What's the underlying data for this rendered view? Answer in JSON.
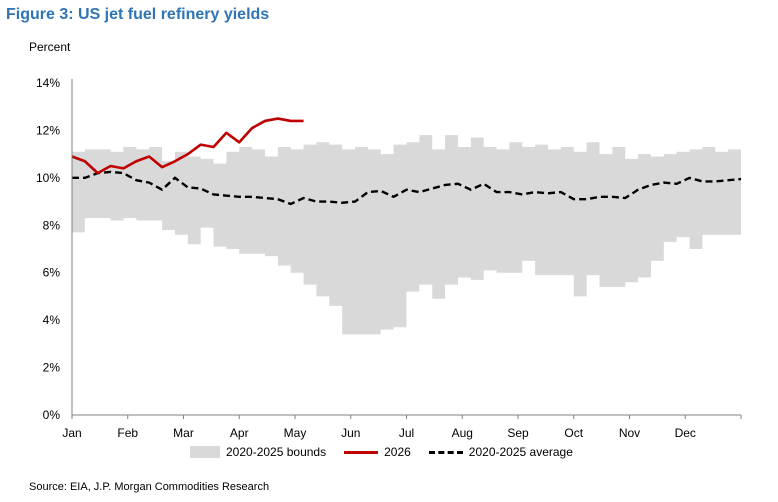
{
  "title": "Figure 3: US jet fuel refinery yields",
  "y_unit": "Percent",
  "source": "Source: EIA, J.P. Morgan Commodities Research",
  "colors": {
    "title": "#2f75b5",
    "band": "#d9d9d9",
    "series_2026": "#c00000",
    "average": "#000000"
  },
  "chart_data": {
    "type": "line",
    "title": "Figure 3: US jet fuel refinery yields",
    "ylabel": "Percent",
    "xlabel": "",
    "ylim": [
      0,
      14
    ],
    "yticks": [
      "0%",
      "2%",
      "4%",
      "6%",
      "8%",
      "10%",
      "12%",
      "14%"
    ],
    "xlim": [
      0,
      52
    ],
    "x_unit": "week of year",
    "months": [
      "Jan",
      "Feb",
      "Mar",
      "Apr",
      "May",
      "Jun",
      "Jul",
      "Aug",
      "Sep",
      "Oct",
      "Nov",
      "Dec"
    ],
    "legend": [
      "2020-2025 bounds",
      "2026",
      "2020-2025 average"
    ],
    "legend_position": "bottom",
    "grid": false,
    "bounds": {
      "name": "2020-2025 bounds",
      "x": [
        0,
        1,
        2,
        3,
        4,
        5,
        6,
        7,
        8,
        9,
        10,
        11,
        12,
        13,
        14,
        15,
        16,
        17,
        18,
        19,
        20,
        21,
        22,
        23,
        24,
        25,
        26,
        27,
        28,
        29,
        30,
        31,
        32,
        33,
        34,
        35,
        36,
        37,
        38,
        39,
        40,
        41,
        42,
        43,
        44,
        45,
        46,
        47,
        48,
        49,
        50,
        51,
        52
      ],
      "upper": [
        11.1,
        11.2,
        11.2,
        11.1,
        11.3,
        11.2,
        11.3,
        10.7,
        11.1,
        10.9,
        10.8,
        10.6,
        11.1,
        11.3,
        11.2,
        10.9,
        11.3,
        11.2,
        11.4,
        11.5,
        11.4,
        11.2,
        11.3,
        11.2,
        11.0,
        11.4,
        11.5,
        11.8,
        11.2,
        11.8,
        11.3,
        11.7,
        11.3,
        11.2,
        11.5,
        11.3,
        11.4,
        11.2,
        11.3,
        11.1,
        11.5,
        11.0,
        11.3,
        10.8,
        11.0,
        10.9,
        11.0,
        11.1,
        11.2,
        11.3,
        11.1,
        11.2,
        11.0
      ],
      "lower": [
        7.7,
        8.3,
        8.3,
        8.2,
        8.3,
        8.2,
        8.2,
        7.8,
        7.6,
        7.2,
        7.9,
        7.1,
        7.0,
        6.8,
        6.8,
        6.7,
        6.3,
        6.0,
        5.5,
        5.0,
        4.6,
        3.4,
        3.4,
        3.4,
        3.6,
        3.7,
        5.2,
        5.5,
        4.9,
        5.5,
        5.8,
        5.7,
        6.1,
        6.0,
        6.0,
        6.5,
        5.9,
        5.9,
        5.9,
        5.0,
        5.9,
        5.4,
        5.4,
        5.6,
        5.8,
        6.5,
        7.3,
        7.5,
        7.0,
        7.6,
        7.6,
        7.6,
        8.2
      ]
    },
    "series": [
      {
        "name": "2026",
        "x": [
          0,
          1,
          2,
          3,
          4,
          5,
          6,
          7,
          8,
          9,
          10,
          11,
          12,
          13,
          14,
          15,
          16,
          17,
          18
        ],
        "values": [
          10.9,
          10.7,
          10.2,
          10.5,
          10.4,
          10.7,
          10.9,
          10.45,
          10.7,
          11.0,
          11.4,
          11.3,
          11.9,
          11.5,
          12.1,
          12.4,
          12.5,
          12.4,
          12.4
        ]
      },
      {
        "name": "2020-2025 average",
        "x": [
          0,
          1,
          2,
          3,
          4,
          5,
          6,
          7,
          8,
          9,
          10,
          11,
          12,
          13,
          14,
          15,
          16,
          17,
          18,
          19,
          20,
          21,
          22,
          23,
          24,
          25,
          26,
          27,
          28,
          29,
          30,
          31,
          32,
          33,
          34,
          35,
          36,
          37,
          38,
          39,
          40,
          41,
          42,
          43,
          44,
          45,
          46,
          47,
          48,
          49,
          50,
          51,
          52
        ],
        "values": [
          10.0,
          10.0,
          10.2,
          10.25,
          10.2,
          9.9,
          9.8,
          9.5,
          10.0,
          9.6,
          9.55,
          9.3,
          9.25,
          9.2,
          9.2,
          9.15,
          9.1,
          8.9,
          9.15,
          9.0,
          9.0,
          8.95,
          9.0,
          9.4,
          9.45,
          9.2,
          9.5,
          9.4,
          9.55,
          9.7,
          9.75,
          9.5,
          9.75,
          9.4,
          9.4,
          9.3,
          9.4,
          9.35,
          9.4,
          9.1,
          9.1,
          9.2,
          9.2,
          9.15,
          9.5,
          9.7,
          9.8,
          9.75,
          10.0,
          9.85,
          9.85,
          9.9,
          9.95
        ]
      }
    ]
  }
}
